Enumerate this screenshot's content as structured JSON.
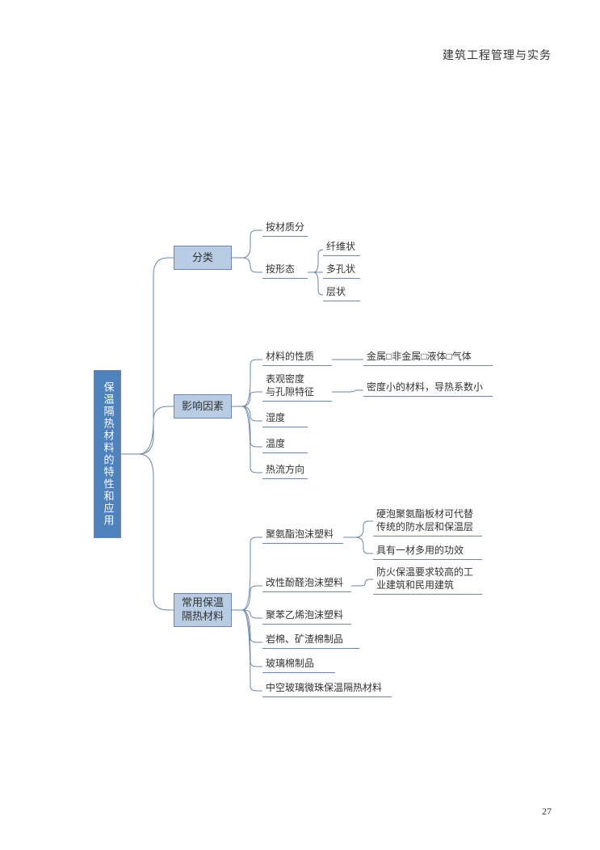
{
  "header_title": "建筑工程管理与实务",
  "page_number": "27",
  "colors": {
    "node_border": "#6b86a8",
    "node_dark_fill": "#4f81bd",
    "node_light_fill": "#b8cce4",
    "connector": "#6b86a8",
    "text_dark": "#ffffff",
    "text_normal": "#333333",
    "background": "#ffffff"
  },
  "diagram": {
    "type": "tree",
    "root": {
      "label": "保温隔热材料的特性和应用"
    },
    "branches": [
      {
        "label": "分类",
        "children": [
          {
            "label": "按材质分"
          },
          {
            "label": "按形态",
            "children": [
              {
                "label": "纤维状"
              },
              {
                "label": "多孔状"
              },
              {
                "label": "层状"
              }
            ]
          }
        ]
      },
      {
        "label": "影响因素",
        "children": [
          {
            "label": "材料的性质",
            "children": [
              {
                "label": "金属□非金属□液体□气体"
              }
            ]
          },
          {
            "label": "表观密度\n与孔隙特征",
            "children": [
              {
                "label": "密度小的材料，导热系数小"
              }
            ]
          },
          {
            "label": "湿度"
          },
          {
            "label": "温度"
          },
          {
            "label": "热流方向"
          }
        ]
      },
      {
        "label": "常用保温\n隔热材料",
        "children": [
          {
            "label": "聚氨酯泡沫塑料",
            "children": [
              {
                "label": "硬泡聚氨酯板材可代替传统的防水层和保温层"
              },
              {
                "label": "具有一材多用的功效"
              }
            ]
          },
          {
            "label": "改性酚醛泡沫塑料",
            "children": [
              {
                "label": "防火保温要求较高的工业建筑和民用建筑"
              }
            ]
          },
          {
            "label": "聚苯乙烯泡沫塑料"
          },
          {
            "label": "岩棉、矿渣棉制品"
          },
          {
            "label": "玻璃棉制品"
          },
          {
            "label": "中空玻璃微珠保温隔热材料"
          }
        ]
      }
    ]
  }
}
